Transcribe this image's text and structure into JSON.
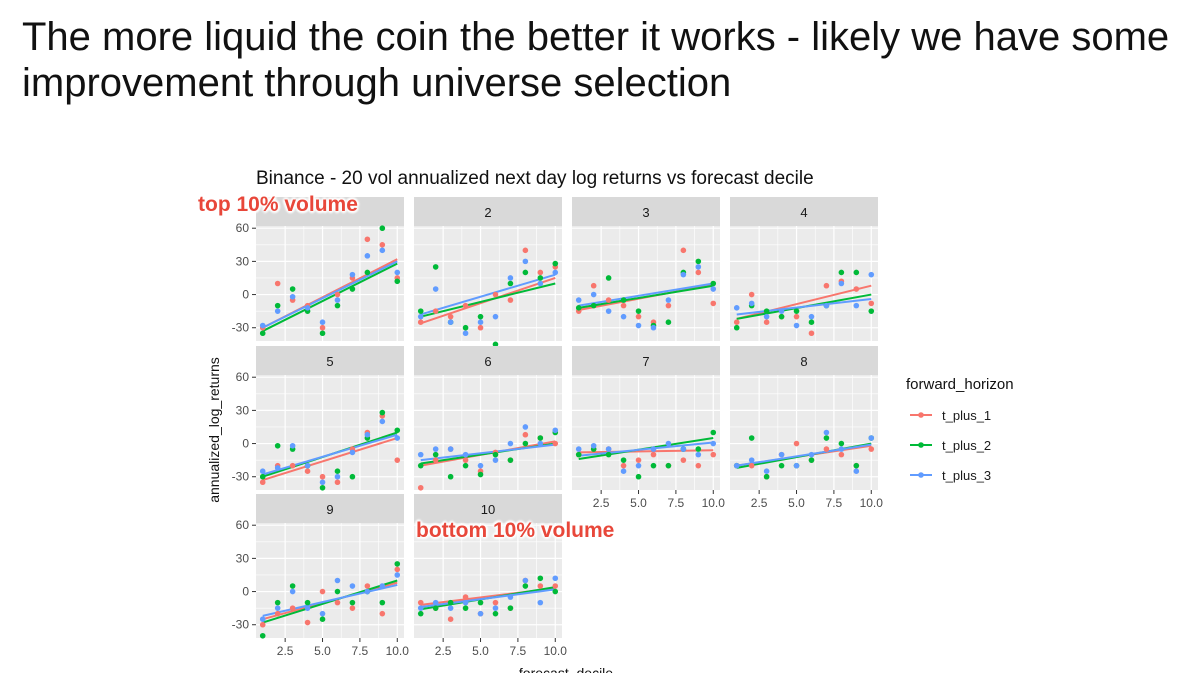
{
  "slide": {
    "title": "The more liquid the coin the better it works - likely we have some improvement through universe selection"
  },
  "annotations": {
    "top_label": "top 10% volume",
    "bottom_label": "bottom 10% volume"
  },
  "colors": {
    "t_plus_1": "#F8766D",
    "t_plus_2": "#00BA38",
    "t_plus_3": "#619CFF",
    "panel_bg": "#EBEBEB",
    "strip_bg": "#D9D9D9",
    "grid": "#FFFFFF",
    "annotation": "#E8473A"
  },
  "chart_data": {
    "type": "scatter",
    "title": "Binance - 20 vol annualized next day log returns vs forecast decile",
    "xlabel": "forecast_decile",
    "ylabel": "annualized_log_returns",
    "xlim": [
      0.55,
      10.45
    ],
    "ylim": [
      -42,
      62
    ],
    "x_ticks": [
      2.5,
      5.0,
      7.5,
      10.0
    ],
    "x_tick_labels": [
      "2.5",
      "5.0",
      "7.5",
      "10.0"
    ],
    "y_ticks": [
      -30,
      0,
      30,
      60
    ],
    "y_tick_labels": [
      "-30",
      "0",
      "30",
      "60"
    ],
    "grid": true,
    "legend_title": "forward_horizon",
    "legend_position": "right",
    "series_order": [
      "t_plus_1",
      "t_plus_2",
      "t_plus_3"
    ],
    "panels": [
      {
        "strip": "",
        "series": [
          {
            "name": "t_plus_1",
            "values": [
              -30,
              10,
              -5,
              -10,
              -30,
              0,
              15,
              50,
              45,
              15
            ]
          },
          {
            "name": "t_plus_2",
            "values": [
              -35,
              -10,
              5,
              -15,
              -35,
              -10,
              5,
              20,
              60,
              12
            ]
          },
          {
            "name": "t_plus_3",
            "values": [
              -28,
              -15,
              -2,
              -12,
              -25,
              -5,
              18,
              35,
              40,
              20
            ]
          }
        ],
        "fits": {
          "t_plus_1": [
            -30,
            32
          ],
          "t_plus_2": [
            -33,
            28
          ],
          "t_plus_3": [
            -30,
            30
          ]
        }
      },
      {
        "strip": "2",
        "series": [
          {
            "name": "t_plus_1",
            "values": [
              -25,
              -15,
              -20,
              -10,
              -30,
              0,
              -5,
              40,
              20,
              25
            ]
          },
          {
            "name": "t_plus_2",
            "values": [
              -15,
              25,
              -25,
              -30,
              -20,
              -45,
              10,
              20,
              15,
              28
            ]
          },
          {
            "name": "t_plus_3",
            "values": [
              -20,
              5,
              -25,
              -35,
              -25,
              -20,
              15,
              30,
              10,
              20
            ]
          }
        ],
        "fits": {
          "t_plus_1": [
            -26,
            15
          ],
          "t_plus_2": [
            -20,
            10
          ],
          "t_plus_3": [
            -18,
            18
          ]
        }
      },
      {
        "strip": "3",
        "series": [
          {
            "name": "t_plus_1",
            "values": [
              -15,
              8,
              -5,
              -10,
              -20,
              -25,
              -10,
              40,
              20,
              -8
            ]
          },
          {
            "name": "t_plus_2",
            "values": [
              -12,
              -10,
              15,
              -5,
              -15,
              -28,
              -25,
              20,
              30,
              10
            ]
          },
          {
            "name": "t_plus_3",
            "values": [
              -5,
              0,
              -15,
              -20,
              -28,
              -30,
              -5,
              18,
              25,
              5
            ]
          }
        ],
        "fits": {
          "t_plus_1": [
            -14,
            9
          ],
          "t_plus_2": [
            -12,
            8
          ],
          "t_plus_3": [
            -10,
            10
          ]
        }
      },
      {
        "strip": "4",
        "series": [
          {
            "name": "t_plus_1",
            "values": [
              -25,
              0,
              -25,
              -20,
              -20,
              -35,
              8,
              12,
              5,
              -8
            ]
          },
          {
            "name": "t_plus_2",
            "values": [
              -30,
              -10,
              -15,
              -20,
              -15,
              -25,
              -10,
              20,
              20,
              -15
            ]
          },
          {
            "name": "t_plus_3",
            "values": [
              -12,
              -8,
              -20,
              -15,
              -28,
              -20,
              -10,
              10,
              -10,
              18
            ]
          }
        ],
        "fits": {
          "t_plus_1": [
            -22,
            8
          ],
          "t_plus_2": [
            -22,
            0
          ],
          "t_plus_3": [
            -18,
            -4
          ]
        }
      },
      {
        "strip": "5",
        "series": [
          {
            "name": "t_plus_1",
            "values": [
              -35,
              -20,
              -20,
              -25,
              -30,
              -35,
              -5,
              10,
              25,
              -15
            ]
          },
          {
            "name": "t_plus_2",
            "values": [
              -30,
              -2,
              -5,
              -20,
              -40,
              -25,
              -30,
              5,
              28,
              12
            ]
          },
          {
            "name": "t_plus_3",
            "values": [
              -25,
              -22,
              -2,
              -20,
              -35,
              -30,
              -8,
              8,
              20,
              5
            ]
          }
        ],
        "fits": {
          "t_plus_1": [
            -33,
            5
          ],
          "t_plus_2": [
            -30,
            10
          ],
          "t_plus_3": [
            -28,
            8
          ]
        }
      },
      {
        "strip": "6",
        "series": [
          {
            "name": "t_plus_1",
            "values": [
              -40,
              -15,
              -5,
              -15,
              -25,
              -8,
              -15,
              8,
              5,
              0
            ]
          },
          {
            "name": "t_plus_2",
            "values": [
              -20,
              -10,
              -30,
              -20,
              -28,
              -10,
              -15,
              0,
              5,
              10
            ]
          },
          {
            "name": "t_plus_3",
            "values": [
              -10,
              -5,
              -5,
              -10,
              -20,
              -15,
              0,
              15,
              0,
              12
            ]
          }
        ],
        "fits": {
          "t_plus_1": [
            -20,
            2
          ],
          "t_plus_2": [
            -18,
            0
          ],
          "t_plus_3": [
            -15,
            -1
          ]
        }
      },
      {
        "strip": "7",
        "series": [
          {
            "name": "t_plus_1",
            "values": [
              -10,
              -5,
              -5,
              -20,
              -15,
              -10,
              -20,
              -15,
              -20,
              -10
            ]
          },
          {
            "name": "t_plus_2",
            "values": [
              -10,
              -5,
              -10,
              -15,
              -30,
              -20,
              -20,
              -5,
              -5,
              10
            ]
          },
          {
            "name": "t_plus_3",
            "values": [
              -5,
              -2,
              -5,
              -25,
              -20,
              -5,
              0,
              -5,
              -10,
              0
            ]
          }
        ],
        "fits": {
          "t_plus_1": [
            -8,
            -6
          ],
          "t_plus_2": [
            -14,
            5
          ],
          "t_plus_3": [
            -11,
            1
          ]
        }
      },
      {
        "strip": "8",
        "series": [
          {
            "name": "t_plus_1",
            "values": [
              -20,
              -20,
              -30,
              -10,
              0,
              -15,
              -5,
              -10,
              -20,
              -5
            ]
          },
          {
            "name": "t_plus_2",
            "values": [
              -20,
              5,
              -30,
              -20,
              -20,
              -15,
              5,
              0,
              -20,
              5
            ]
          },
          {
            "name": "t_plus_3",
            "values": [
              -20,
              -15,
              -25,
              -10,
              -20,
              -10,
              10,
              -5,
              -25,
              5
            ]
          }
        ],
        "fits": {
          "t_plus_1": [
            -20,
            -2
          ],
          "t_plus_2": [
            -22,
            0
          ],
          "t_plus_3": [
            -20,
            -1
          ]
        }
      },
      {
        "strip": "9",
        "series": [
          {
            "name": "t_plus_1",
            "values": [
              -30,
              -20,
              -15,
              -28,
              0,
              -10,
              -15,
              5,
              -20,
              20
            ]
          },
          {
            "name": "t_plus_2",
            "values": [
              -40,
              -10,
              5,
              -10,
              -25,
              0,
              -10,
              0,
              -10,
              25
            ]
          },
          {
            "name": "t_plus_3",
            "values": [
              -25,
              -15,
              0,
              -15,
              -20,
              10,
              5,
              0,
              5,
              15
            ]
          }
        ],
        "fits": {
          "t_plus_1": [
            -25,
            8
          ],
          "t_plus_2": [
            -28,
            10
          ],
          "t_plus_3": [
            -22,
            6
          ]
        }
      },
      {
        "strip": "10",
        "series": [
          {
            "name": "t_plus_1",
            "values": [
              -10,
              -15,
              -25,
              -5,
              -20,
              -10,
              -15,
              10,
              5,
              5
            ]
          },
          {
            "name": "t_plus_2",
            "values": [
              -20,
              -15,
              -10,
              -15,
              -10,
              -20,
              -15,
              5,
              12,
              0
            ]
          },
          {
            "name": "t_plus_3",
            "values": [
              -15,
              -10,
              -15,
              -10,
              -20,
              -15,
              -5,
              10,
              -10,
              12
            ]
          }
        ],
        "fits": {
          "t_plus_1": [
            -12,
            3
          ],
          "t_plus_2": [
            -16,
            4
          ],
          "t_plus_3": [
            -14,
            2
          ]
        }
      }
    ]
  }
}
